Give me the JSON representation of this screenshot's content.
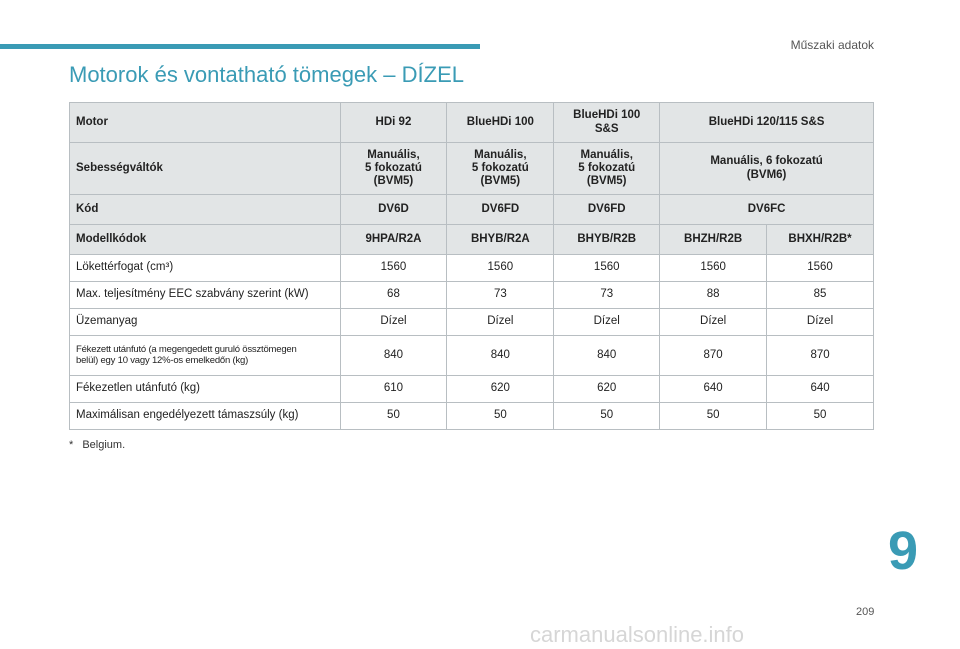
{
  "header": {
    "section_label": "Műszaki adatok",
    "title": "Motorok és vontatható tömegek – DÍZEL"
  },
  "table": {
    "header_rows": [
      {
        "label": "Motor",
        "cells": [
          {
            "text": "HDi 92",
            "span": 1
          },
          {
            "text": "BlueHDi 100",
            "span": 1
          },
          {
            "text": "BlueHDi 100\nS&S",
            "span": 1
          },
          {
            "text": "BlueHDi 120/115 S&S",
            "span": 2
          }
        ]
      },
      {
        "label": "Sebességváltók",
        "cells": [
          {
            "text": "Manuális,\n5 fokozatú\n(BVM5)",
            "span": 1
          },
          {
            "text": "Manuális,\n5 fokozatú\n(BVM5)",
            "span": 1
          },
          {
            "text": "Manuális,\n5 fokozatú\n(BVM5)",
            "span": 1
          },
          {
            "text": "Manuális, 6 fokozatú\n(BVM6)",
            "span": 2
          }
        ]
      },
      {
        "label": "Kód",
        "cells": [
          {
            "text": "DV6D",
            "span": 1
          },
          {
            "text": "DV6FD",
            "span": 1
          },
          {
            "text": "DV6FD",
            "span": 1
          },
          {
            "text": "DV6FC",
            "span": 2
          }
        ]
      },
      {
        "label": "Modellkódok",
        "cells": [
          {
            "text": "9HPA/R2A",
            "span": 1
          },
          {
            "text": "BHYB/R2A",
            "span": 1
          },
          {
            "text": "BHYB/R2B",
            "span": 1
          },
          {
            "text": "BHZH/R2B",
            "span": 1
          },
          {
            "text": "BHXH/R2B*",
            "span": 1
          }
        ]
      }
    ],
    "data_rows": [
      {
        "label": "Lökettérfogat (cm³)",
        "values": [
          "1560",
          "1560",
          "1560",
          "1560",
          "1560"
        ]
      },
      {
        "label": "Max. teljesítmény EEC szabvány szerint (kW)",
        "values": [
          "68",
          "73",
          "73",
          "88",
          "85"
        ]
      },
      {
        "label": "Üzemanyag",
        "values": [
          "Dízel",
          "Dízel",
          "Dízel",
          "Dízel",
          "Dízel"
        ]
      },
      {
        "label": "Fékezett utánfutó (a megengedett guruló össztömegen\nbelül) egy 10 vagy 12%-os emelkedőn (kg)",
        "values": [
          "840",
          "840",
          "840",
          "870",
          "870"
        ],
        "small": true
      },
      {
        "label": "Fékezetlen utánfutó (kg)",
        "values": [
          "610",
          "620",
          "620",
          "640",
          "640"
        ]
      },
      {
        "label": "Maximálisan engedélyezett támaszsúly (kg)",
        "values": [
          "50",
          "50",
          "50",
          "50",
          "50"
        ]
      }
    ]
  },
  "footnote": {
    "mark": "*",
    "text": "Belgium."
  },
  "chapter": "9",
  "page_number": "209",
  "watermark": "carmanualsonline.info"
}
